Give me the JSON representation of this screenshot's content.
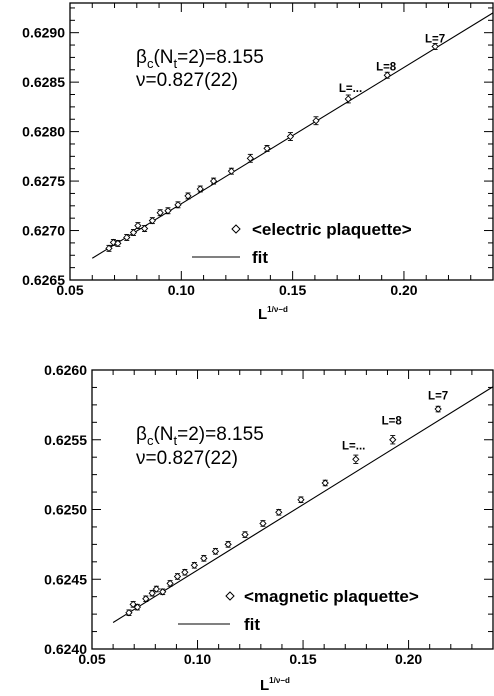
{
  "chart_data": [
    {
      "type": "scatter",
      "xlabel": {
        "base": "L",
        "exp": "1/ν−d"
      },
      "xlim": [
        0.05,
        0.24
      ],
      "ylim": [
        0.6265,
        0.6293
      ],
      "xticks": [
        "0.05",
        "0.10",
        "0.15",
        "0.20"
      ],
      "xtick_values": [
        0.05,
        0.1,
        0.15,
        0.2
      ],
      "yticks": [
        "0.6265",
        "0.6270",
        "0.6275",
        "0.6280",
        "0.6285",
        "0.6290"
      ],
      "ytick_values": [
        0.6265,
        0.627,
        0.6275,
        0.628,
        0.6285,
        0.629
      ],
      "annotation": {
        "beta_base": "β",
        "beta_sub": "c",
        "beta_arg_pre": "(N",
        "beta_arg_sub": "t",
        "beta_arg_post": "=2)=8.155",
        "nu": "ν=0.827(22)"
      },
      "point_labels": [
        {
          "text": "L=7",
          "x": 0.214,
          "y": 0.6289
        },
        {
          "text": "L=8",
          "x": 0.192,
          "y": 0.62862
        },
        {
          "text": "L=...",
          "x": 0.176,
          "y": 0.6284
        }
      ],
      "series": [
        {
          "name": "<electric plaquette>",
          "marker": "diamond",
          "x": [
            0.0675,
            0.0695,
            0.0715,
            0.0755,
            0.0785,
            0.0805,
            0.0835,
            0.087,
            0.0905,
            0.094,
            0.0985,
            0.103,
            0.1085,
            0.1145,
            0.1225,
            0.131,
            0.1385,
            0.149,
            0.1605,
            0.175,
            0.1925,
            0.214
          ],
          "y": [
            0.62682,
            0.62688,
            0.62687,
            0.62693,
            0.62698,
            0.62705,
            0.62702,
            0.6271,
            0.62718,
            0.6272,
            0.62726,
            0.62735,
            0.62742,
            0.6275,
            0.6276,
            0.62773,
            0.62783,
            0.62795,
            0.62811,
            0.62833,
            0.62857,
            0.62886
          ],
          "err": [
            3e-05,
            3e-05,
            3e-05,
            3e-05,
            3e-05,
            3e-05,
            3e-05,
            3e-05,
            3e-05,
            3e-05,
            3e-05,
            3e-05,
            3e-05,
            3e-05,
            3e-05,
            4e-05,
            3e-05,
            4e-05,
            4e-05,
            4e-05,
            3e-05,
            3e-05
          ]
        },
        {
          "name": "fit",
          "type": "line",
          "x": [
            0.06,
            0.24
          ],
          "y": [
            0.62672,
            0.6292
          ]
        }
      ]
    },
    {
      "type": "scatter",
      "xlabel": {
        "base": "L",
        "exp": "1/ν−d"
      },
      "xlim": [
        0.05,
        0.24
      ],
      "ylim": [
        0.624,
        0.626
      ],
      "xticks": [
        "0.05",
        "0.10",
        "0.15",
        "0.20"
      ],
      "xtick_values": [
        0.05,
        0.1,
        0.15,
        0.2
      ],
      "yticks": [
        "0.6240",
        "0.6245",
        "0.6250",
        "0.6255",
        "0.6260"
      ],
      "ytick_values": [
        0.624,
        0.6245,
        0.625,
        0.6255,
        0.626
      ],
      "annotation": {
        "beta_base": "β",
        "beta_sub": "c",
        "beta_arg_pre": "(N",
        "beta_arg_sub": "t",
        "beta_arg_post": "=2)=8.155",
        "nu": "ν=0.827(22)"
      },
      "point_labels": [
        {
          "text": "L=7",
          "x": 0.214,
          "y": 0.62579
        },
        {
          "text": "L=8",
          "x": 0.192,
          "y": 0.62561
        },
        {
          "text": "L=...",
          "x": 0.174,
          "y": 0.62543
        }
      ],
      "series": [
        {
          "name": "<magnetic plaquette>",
          "marker": "diamond",
          "x": [
            0.0675,
            0.0695,
            0.0715,
            0.0755,
            0.0785,
            0.0805,
            0.0835,
            0.087,
            0.0905,
            0.094,
            0.0985,
            0.103,
            0.1085,
            0.1145,
            0.1225,
            0.131,
            0.1385,
            0.149,
            0.1605,
            0.175,
            0.1925,
            0.214
          ],
          "y": [
            0.62426,
            0.62432,
            0.6243,
            0.62436,
            0.6244,
            0.62443,
            0.62441,
            0.62447,
            0.62452,
            0.62455,
            0.6246,
            0.62465,
            0.6247,
            0.62475,
            0.62482,
            0.6249,
            0.62498,
            0.62507,
            0.62519,
            0.62536,
            0.6255,
            0.62572
          ],
          "err": [
            2e-05,
            2e-05,
            2e-05,
            2e-05,
            2e-05,
            2e-05,
            2e-05,
            2e-05,
            2e-05,
            2e-05,
            2e-05,
            2e-05,
            2e-05,
            2e-05,
            2e-05,
            2e-05,
            2e-05,
            2e-05,
            2e-05,
            3e-05,
            3e-05,
            2e-05
          ]
        },
        {
          "name": "fit",
          "type": "line",
          "x": [
            0.06,
            0.24
          ],
          "y": [
            0.62419,
            0.62588
          ]
        }
      ]
    }
  ]
}
